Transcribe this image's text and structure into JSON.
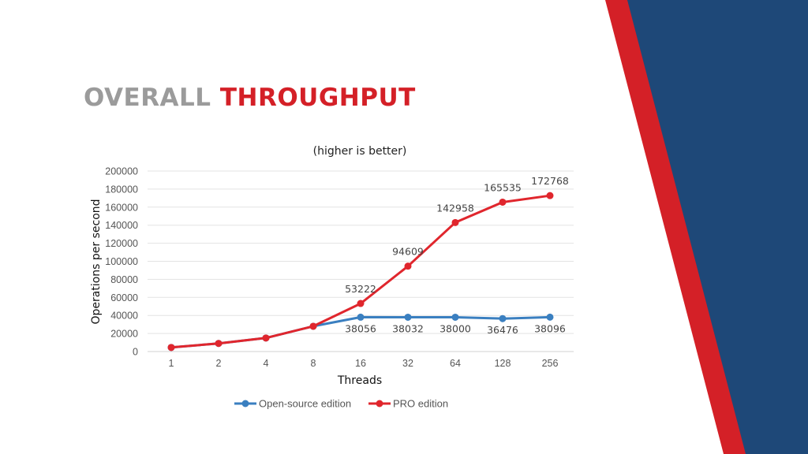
{
  "slide": {
    "title_part1": "OVERALL",
    "title_part2": "THROUGHPUT",
    "colors": {
      "title_gray": "#9b9b9b",
      "accent_red": "#d42027",
      "navy": "#1e4878"
    }
  },
  "chart_data": {
    "type": "line",
    "title": "(higher is better)",
    "xlabel": "Threads",
    "ylabel": "Operations per second",
    "categories": [
      "1",
      "2",
      "4",
      "8",
      "16",
      "32",
      "64",
      "128",
      "256"
    ],
    "ylim": [
      0,
      200000
    ],
    "yticks": [
      0,
      20000,
      40000,
      60000,
      80000,
      100000,
      120000,
      140000,
      160000,
      180000,
      200000
    ],
    "grid": true,
    "legend_position": "bottom",
    "series": [
      {
        "name": "Open-source edition",
        "color": "#3a7fc0",
        "values": [
          4500,
          9000,
          15000,
          28000,
          38056,
          38032,
          38000,
          36476,
          38096
        ],
        "labels": [
          "",
          "",
          "",
          "",
          "38056",
          "38032",
          "38000",
          "36476",
          "38096"
        ],
        "label_position": "below"
      },
      {
        "name": "PRO edition",
        "color": "#e0262d",
        "values": [
          4500,
          9000,
          15000,
          28000,
          53222,
          94609,
          142958,
          165535,
          172768
        ],
        "labels": [
          "",
          "",
          "",
          "",
          "53222",
          "94609",
          "142958",
          "165535",
          "172768"
        ],
        "label_position": "above"
      }
    ]
  }
}
